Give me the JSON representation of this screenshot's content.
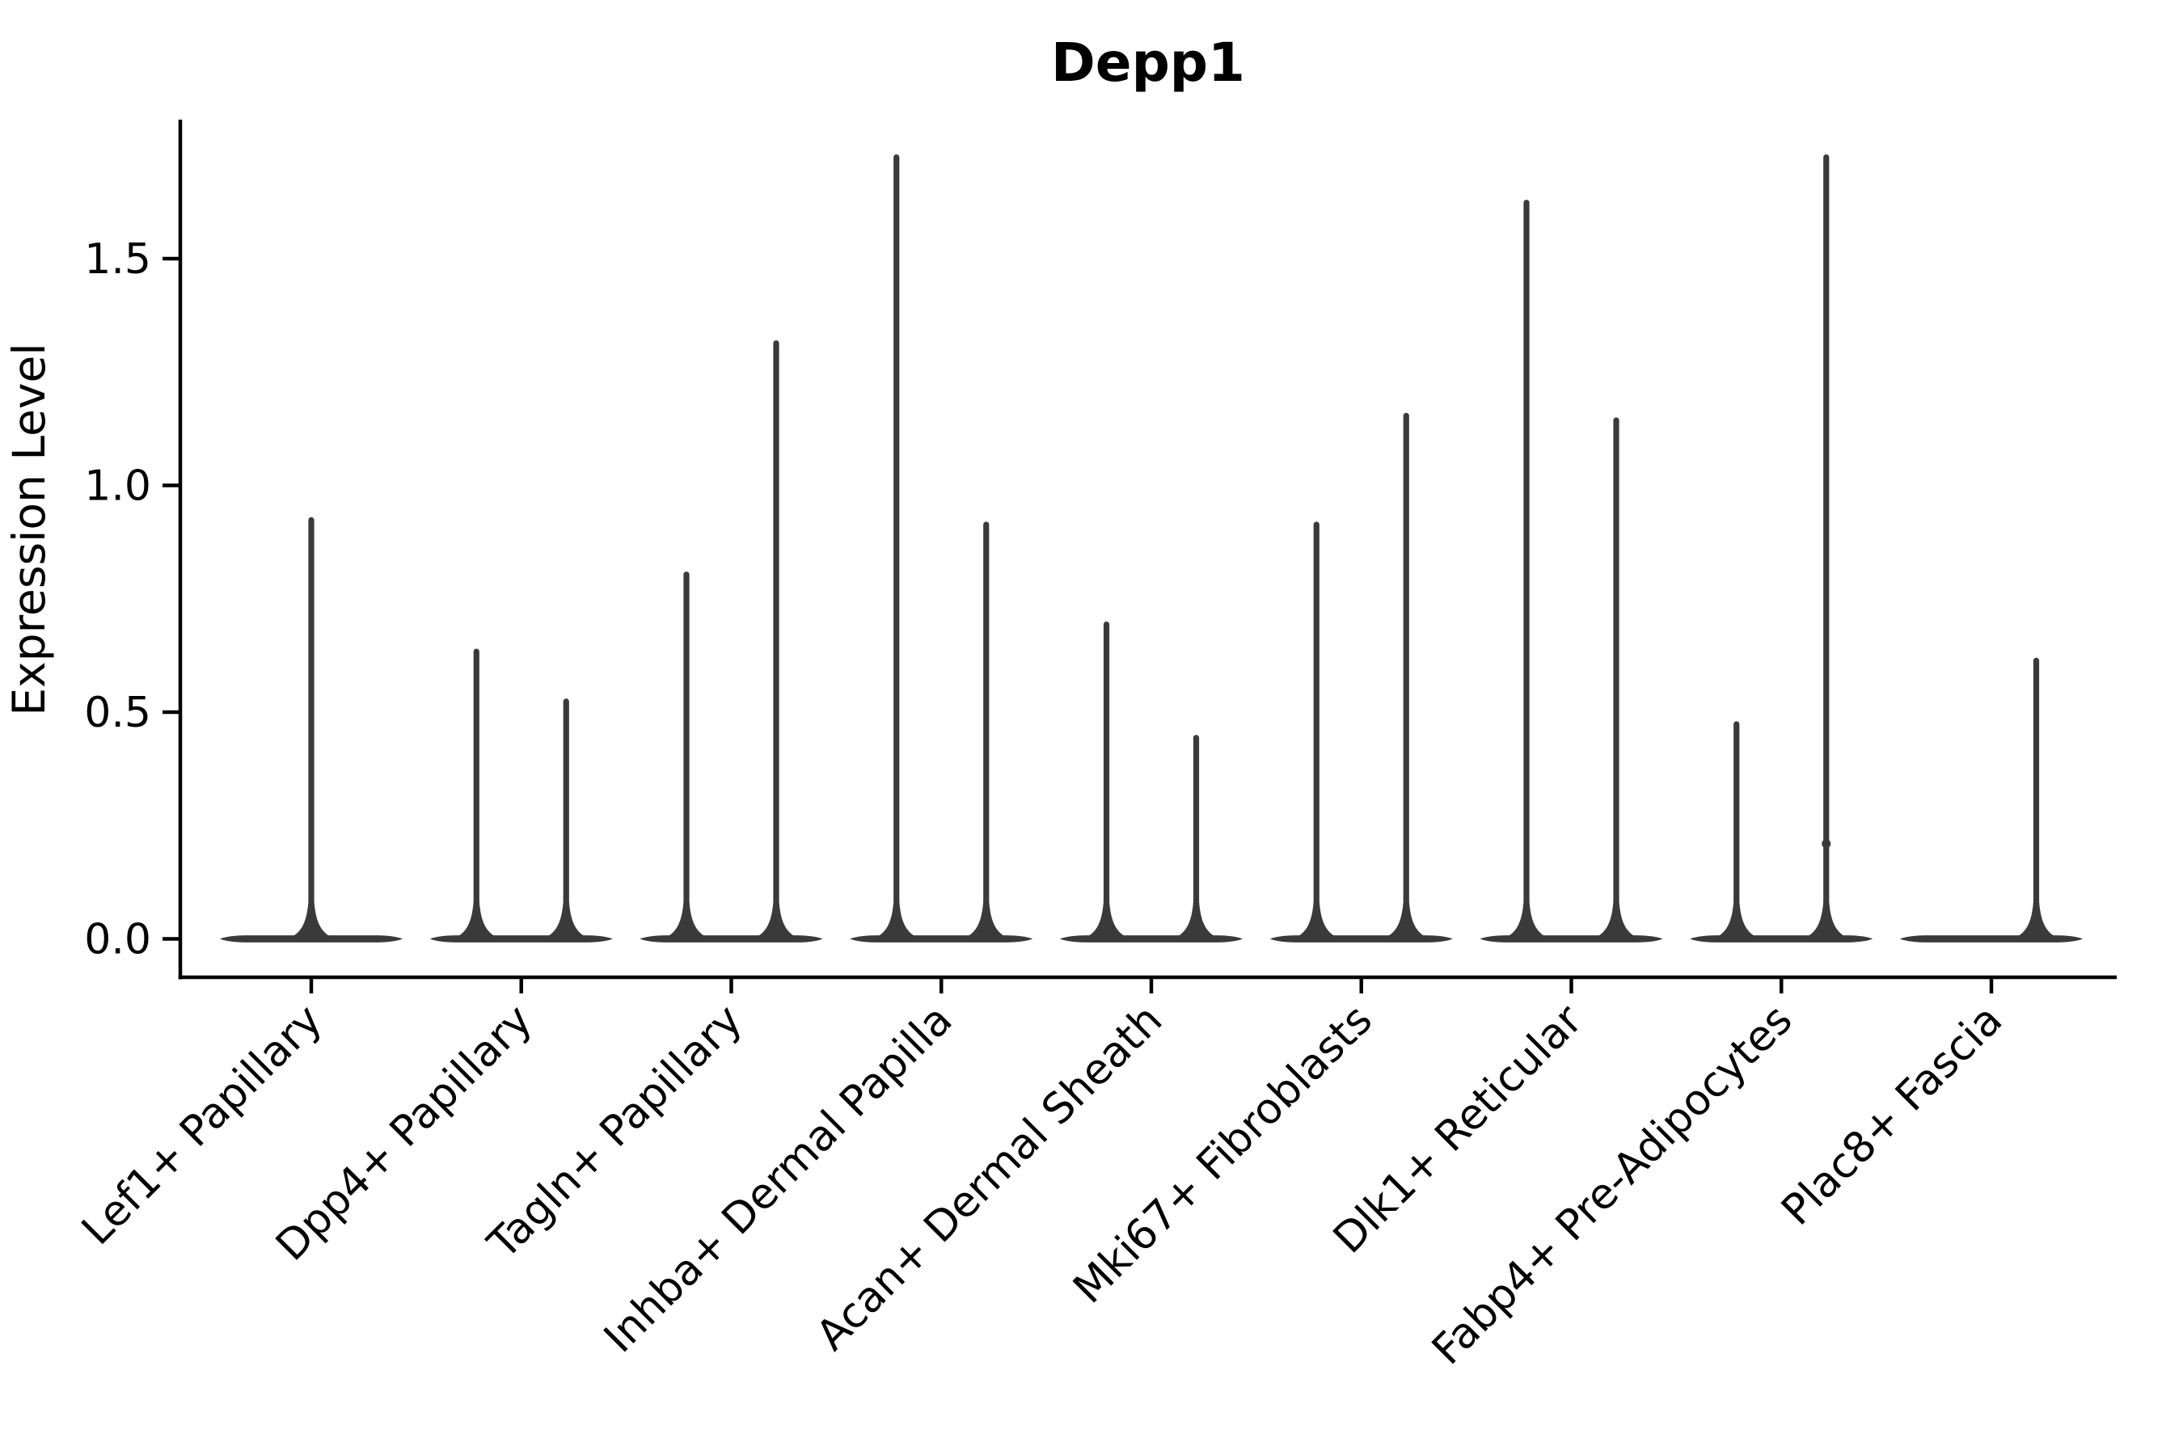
{
  "title": "Depp1",
  "ylabel": "Expression Level",
  "colors": {
    "background": "#ffffff",
    "violin": "#3a3a3a",
    "axis": "#000000",
    "text": "#000000"
  },
  "chart_data": {
    "type": "violin",
    "title": "Depp1",
    "xlabel": "",
    "ylabel": "Expression Level",
    "ylim": [
      0,
      1.8
    ],
    "yticks": [
      0.0,
      0.5,
      1.0,
      1.5
    ],
    "ytick_labels": [
      "0.0",
      "0.5",
      "1.0",
      "1.5"
    ],
    "grid": false,
    "legend": "none",
    "xtick_rotation": 45,
    "baseline_note": "each violin has dense mass at 0 forming a flat wide base, with a thin tail rising to its maximum expression value",
    "categories": [
      "Lef1+ Papillary",
      "Dpp4+ Papillary",
      "Tagln+ Papillary",
      "Inhba+ Dermal Papilla",
      "Acan+ Dermal Sheath",
      "Mki67+ Fibroblasts",
      "Dlk1+ Reticular",
      "Fabp4+ Pre-Adipocytes",
      "Plac8+ Fascia"
    ],
    "series": [
      {
        "category": "Lef1+ Papillary",
        "violins": [
          {
            "position": "center",
            "max": 0.93
          }
        ]
      },
      {
        "category": "Dpp4+ Papillary",
        "violins": [
          {
            "position": "left",
            "max": 0.64
          },
          {
            "position": "right",
            "max": 0.53
          }
        ]
      },
      {
        "category": "Tagln+ Papillary",
        "violins": [
          {
            "position": "left",
            "max": 0.81
          },
          {
            "position": "right",
            "max": 1.32
          }
        ]
      },
      {
        "category": "Inhba+ Dermal Papilla",
        "violins": [
          {
            "position": "left",
            "max": 1.73
          },
          {
            "position": "right",
            "max": 0.92
          }
        ]
      },
      {
        "category": "Acan+ Dermal Sheath",
        "violins": [
          {
            "position": "left",
            "max": 0.7
          },
          {
            "position": "right",
            "max": 0.45
          }
        ]
      },
      {
        "category": "Mki67+ Fibroblasts",
        "violins": [
          {
            "position": "left",
            "max": 0.92
          },
          {
            "position": "right",
            "max": 1.16
          }
        ]
      },
      {
        "category": "Dlk1+ Reticular",
        "violins": [
          {
            "position": "left",
            "max": 1.63
          },
          {
            "position": "right",
            "max": 1.15
          }
        ]
      },
      {
        "category": "Fabp4+ Pre-Adipocytes",
        "violins": [
          {
            "position": "left",
            "max": 0.48
          },
          {
            "position": "right",
            "max": 1.73,
            "dot": 0.21
          }
        ]
      },
      {
        "category": "Plac8+ Fascia",
        "violins": [
          {
            "position": "right",
            "max": 0.62
          }
        ]
      }
    ]
  }
}
